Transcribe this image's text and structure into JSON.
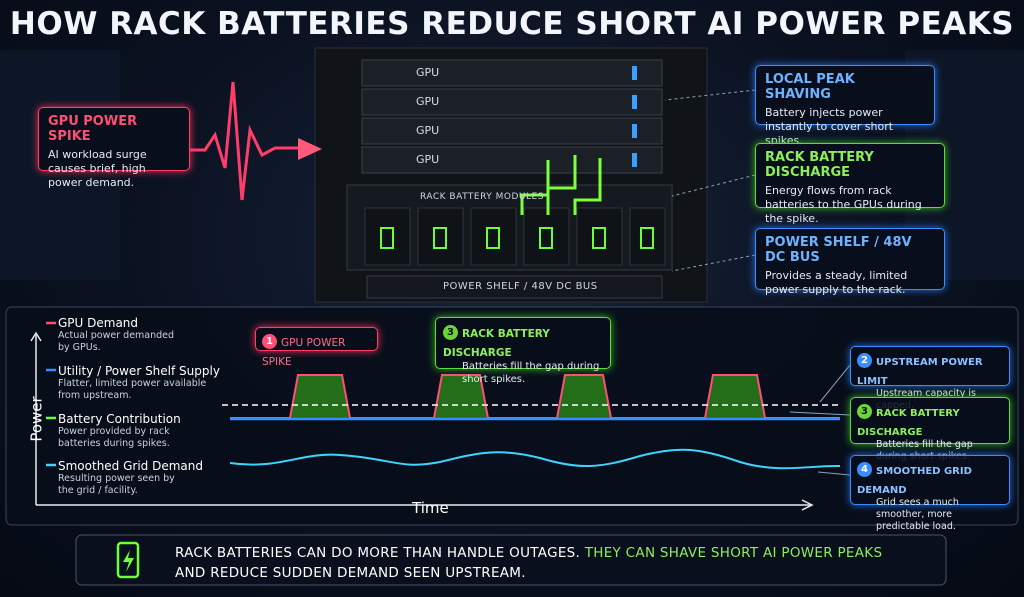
{
  "title": "HOW RACK BATTERIES REDUCE SHORT AI POWER PEAKS",
  "rack": {
    "gpu_labels": [
      "GPU",
      "GPU",
      "GPU",
      "GPU"
    ],
    "battery_modules": "RACK BATTERY MODULES",
    "power_shelf": "POWER SHELF / 48V DC BUS"
  },
  "callouts": [
    {
      "title": "GPU POWER SPIKE",
      "text": "AI workload surge causes brief, high power demand."
    },
    {
      "title": "LOCAL PEAK SHAVING",
      "text": "Battery injects power instantly to cover short spikes."
    },
    {
      "title": "RACK BATTERY DISCHARGE",
      "text": "Energy flows from rack batteries to the GPUs during the spike."
    },
    {
      "title": "POWER SHELF / 48V DC BUS",
      "text": "Provides a steady, limited power supply to the rack."
    }
  ],
  "legend": [
    {
      "name": "GPU Demand",
      "description": "Actual power demanded by GPUs."
    },
    {
      "name": "Utility / Power Shelf Supply",
      "description": "Flatter, limited power available from upstream."
    },
    {
      "name": "Battery Contribution",
      "description": "Power provided by rack batteries during spikes."
    },
    {
      "name": "Smoothed Grid Demand",
      "description": "Resulting power seen by the grid / facility."
    }
  ],
  "axes": {
    "y": "Power",
    "x": "Time"
  },
  "annotations": [
    {
      "number": "1",
      "title": "GPU POWER SPIKE"
    },
    {
      "number": "3",
      "title": "RACK BATTERY DISCHARGE",
      "text": "Batteries fill the gap during short spikes."
    }
  ],
  "side_notes": [
    {
      "number": "2",
      "title": "UPSTREAM POWER LIMIT",
      "text": "Upstream capacity is capped."
    },
    {
      "number": "3",
      "title": "RACK BATTERY DISCHARGE",
      "text": "Batteries fill the gap during short spikes."
    },
    {
      "number": "4",
      "title": "SMOOTHED GRID DEMAND",
      "text": "Grid sees a much smoother, more predictable load."
    }
  ],
  "footer": {
    "text": "RACK BATTERIES CAN DO MORE THAN HANDLE OUTAGES.",
    "highlight": "THEY CAN SHAVE SHORT AI POWER PEAKS",
    "text2": "AND REDUCE SUDDEN DEMAND SEEN UPSTREAM."
  }
}
